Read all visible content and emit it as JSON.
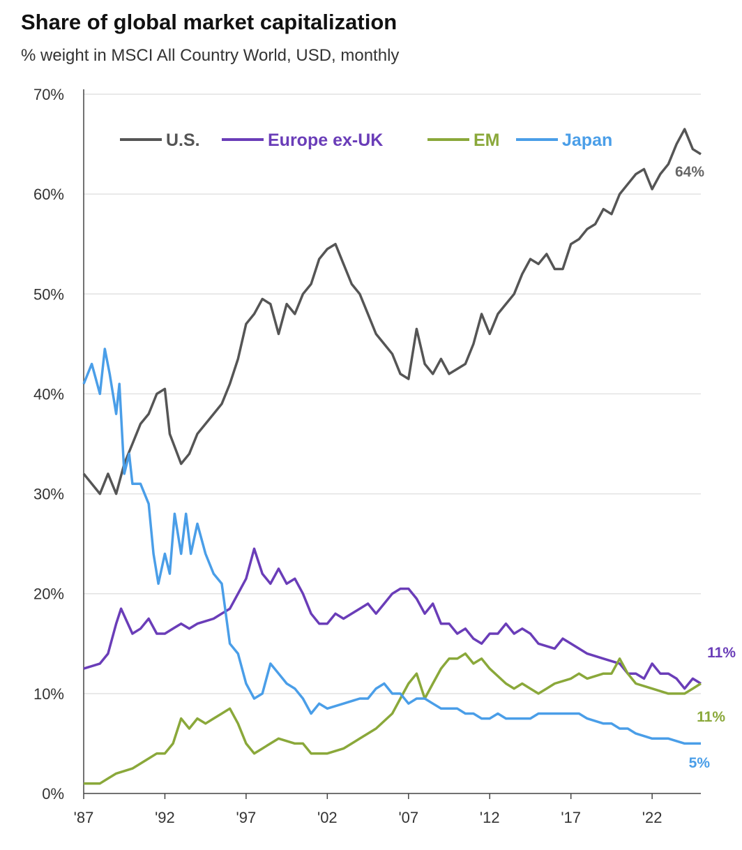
{
  "chart_data": {
    "type": "line",
    "title": "Share of global market capitalization",
    "subtitle": "% weight in MSCI All Country World, USD, monthly",
    "xlabel": "",
    "ylabel": "",
    "xlim": [
      1987,
      2025
    ],
    "ylim": [
      0,
      70
    ],
    "x_ticks": [
      1987,
      1992,
      1997,
      2002,
      2007,
      2012,
      2017,
      2022
    ],
    "x_tick_labels": [
      "'87",
      "'92",
      "'97",
      "'02",
      "'07",
      "'12",
      "'17",
      "'22"
    ],
    "y_ticks": [
      0,
      10,
      20,
      30,
      40,
      50,
      60,
      70
    ],
    "y_tick_labels": [
      "0%",
      "10%",
      "20%",
      "30%",
      "40%",
      "50%",
      "60%",
      "70%"
    ],
    "grid": "horizontal",
    "legend": "top",
    "series": [
      {
        "name": "U.S.",
        "color": "#555555",
        "end_label": "64%",
        "points": [
          [
            1987,
            32
          ],
          [
            1988,
            30
          ],
          [
            1988.5,
            32
          ],
          [
            1989,
            30
          ],
          [
            1989.5,
            33
          ],
          [
            1990,
            35
          ],
          [
            1990.5,
            37
          ],
          [
            1991,
            38
          ],
          [
            1991.5,
            40
          ],
          [
            1992,
            40.5
          ],
          [
            1992.3,
            36
          ],
          [
            1993,
            33
          ],
          [
            1993.5,
            34
          ],
          [
            1994,
            36
          ],
          [
            1995,
            38
          ],
          [
            1995.5,
            39
          ],
          [
            1996,
            41
          ],
          [
            1996.5,
            43.5
          ],
          [
            1997,
            47
          ],
          [
            1997.5,
            48
          ],
          [
            1998,
            49.5
          ],
          [
            1998.5,
            49
          ],
          [
            1999,
            46
          ],
          [
            1999.5,
            49
          ],
          [
            2000,
            48
          ],
          [
            2000.5,
            50
          ],
          [
            2001,
            51
          ],
          [
            2001.5,
            53.5
          ],
          [
            2002,
            54.5
          ],
          [
            2002.5,
            55
          ],
          [
            2003,
            53
          ],
          [
            2003.5,
            51
          ],
          [
            2004,
            50
          ],
          [
            2004.5,
            48
          ],
          [
            2005,
            46
          ],
          [
            2005.5,
            45
          ],
          [
            2006,
            44
          ],
          [
            2006.5,
            42
          ],
          [
            2007,
            41.5
          ],
          [
            2007.5,
            46.5
          ],
          [
            2008,
            43
          ],
          [
            2008.5,
            42
          ],
          [
            2009,
            43.5
          ],
          [
            2009.5,
            42
          ],
          [
            2010,
            42.5
          ],
          [
            2010.5,
            43
          ],
          [
            2011,
            45
          ],
          [
            2011.5,
            48
          ],
          [
            2012,
            46
          ],
          [
            2012.5,
            48
          ],
          [
            2013,
            49
          ],
          [
            2013.5,
            50
          ],
          [
            2014,
            52
          ],
          [
            2014.5,
            53.5
          ],
          [
            2015,
            53
          ],
          [
            2015.5,
            54
          ],
          [
            2016,
            52.5
          ],
          [
            2016.5,
            52.5
          ],
          [
            2017,
            55
          ],
          [
            2017.5,
            55.5
          ],
          [
            2018,
            56.5
          ],
          [
            2018.5,
            57
          ],
          [
            2019,
            58.5
          ],
          [
            2019.5,
            58
          ],
          [
            2020,
            60
          ],
          [
            2020.5,
            61
          ],
          [
            2021,
            62
          ],
          [
            2021.5,
            62.5
          ],
          [
            2022,
            60.5
          ],
          [
            2022.5,
            62
          ],
          [
            2023,
            63
          ],
          [
            2023.5,
            65
          ],
          [
            2024,
            66.5
          ],
          [
            2024.5,
            64.5
          ],
          [
            2025,
            64
          ]
        ]
      },
      {
        "name": "Europe ex-UK",
        "color": "#6a3db8",
        "end_label": "11%",
        "points": [
          [
            1987,
            12.5
          ],
          [
            1988,
            13
          ],
          [
            1988.5,
            14
          ],
          [
            1989,
            17
          ],
          [
            1989.3,
            18.5
          ],
          [
            1990,
            16
          ],
          [
            1990.5,
            16.5
          ],
          [
            1991,
            17.5
          ],
          [
            1991.5,
            16
          ],
          [
            1992,
            16
          ],
          [
            1992.5,
            16.5
          ],
          [
            1993,
            17
          ],
          [
            1993.5,
            16.5
          ],
          [
            1994,
            17
          ],
          [
            1995,
            17.5
          ],
          [
            1995.5,
            18
          ],
          [
            1996,
            18.5
          ],
          [
            1996.5,
            20
          ],
          [
            1997,
            21.5
          ],
          [
            1997.5,
            24.5
          ],
          [
            1998,
            22
          ],
          [
            1998.5,
            21
          ],
          [
            1999,
            22.5
          ],
          [
            1999.5,
            21
          ],
          [
            2000,
            21.5
          ],
          [
            2000.5,
            20
          ],
          [
            2001,
            18
          ],
          [
            2001.5,
            17
          ],
          [
            2002,
            17
          ],
          [
            2002.5,
            18
          ],
          [
            2003,
            17.5
          ],
          [
            2004,
            18.5
          ],
          [
            2004.5,
            19
          ],
          [
            2005,
            18
          ],
          [
            2005.5,
            19
          ],
          [
            2006,
            20
          ],
          [
            2006.5,
            20.5
          ],
          [
            2007,
            20.5
          ],
          [
            2007.5,
            19.5
          ],
          [
            2008,
            18
          ],
          [
            2008.5,
            19
          ],
          [
            2009,
            17
          ],
          [
            2009.5,
            17
          ],
          [
            2010,
            16
          ],
          [
            2010.5,
            16.5
          ],
          [
            2011,
            15.5
          ],
          [
            2011.5,
            15
          ],
          [
            2012,
            16
          ],
          [
            2012.5,
            16
          ],
          [
            2013,
            17
          ],
          [
            2013.5,
            16
          ],
          [
            2014,
            16.5
          ],
          [
            2014.5,
            16
          ],
          [
            2015,
            15
          ],
          [
            2016,
            14.5
          ],
          [
            2016.5,
            15.5
          ],
          [
            2017,
            15
          ],
          [
            2017.5,
            14.5
          ],
          [
            2018,
            14
          ],
          [
            2019,
            13.5
          ],
          [
            2020,
            13
          ],
          [
            2020.5,
            12
          ],
          [
            2021,
            12
          ],
          [
            2021.5,
            11.5
          ],
          [
            2022,
            13
          ],
          [
            2022.5,
            12
          ],
          [
            2023,
            12
          ],
          [
            2023.5,
            11.5
          ],
          [
            2024,
            10.5
          ],
          [
            2024.5,
            11.5
          ],
          [
            2025,
            11
          ]
        ]
      },
      {
        "name": "EM",
        "color": "#8aa83a",
        "end_label": "11%",
        "points": [
          [
            1987,
            1
          ],
          [
            1988,
            1
          ],
          [
            1988.5,
            1.5
          ],
          [
            1989,
            2
          ],
          [
            1990,
            2.5
          ],
          [
            1991,
            3.5
          ],
          [
            1991.5,
            4
          ],
          [
            1992,
            4
          ],
          [
            1992.5,
            5
          ],
          [
            1993,
            7.5
          ],
          [
            1993.5,
            6.5
          ],
          [
            1994,
            7.5
          ],
          [
            1994.5,
            7
          ],
          [
            1995,
            7.5
          ],
          [
            1995.5,
            8
          ],
          [
            1996,
            8.5
          ],
          [
            1996.5,
            7
          ],
          [
            1997,
            5
          ],
          [
            1997.5,
            4
          ],
          [
            1998,
            4.5
          ],
          [
            1998.5,
            5
          ],
          [
            1999,
            5.5
          ],
          [
            2000,
            5
          ],
          [
            2000.5,
            5
          ],
          [
            2001,
            4
          ],
          [
            2002,
            4
          ],
          [
            2003,
            4.5
          ],
          [
            2004,
            5.5
          ],
          [
            2005,
            6.5
          ],
          [
            2006,
            8
          ],
          [
            2006.5,
            9.5
          ],
          [
            2007,
            11
          ],
          [
            2007.5,
            12
          ],
          [
            2008,
            9.5
          ],
          [
            2008.5,
            11
          ],
          [
            2009,
            12.5
          ],
          [
            2009.5,
            13.5
          ],
          [
            2010,
            13.5
          ],
          [
            2010.5,
            14
          ],
          [
            2011,
            13
          ],
          [
            2011.5,
            13.5
          ],
          [
            2012,
            12.5
          ],
          [
            2013,
            11
          ],
          [
            2013.5,
            10.5
          ],
          [
            2014,
            11
          ],
          [
            2015,
            10
          ],
          [
            2015.5,
            10.5
          ],
          [
            2016,
            11
          ],
          [
            2017,
            11.5
          ],
          [
            2017.5,
            12
          ],
          [
            2018,
            11.5
          ],
          [
            2019,
            12
          ],
          [
            2019.5,
            12
          ],
          [
            2020,
            13.5
          ],
          [
            2020.5,
            12
          ],
          [
            2021,
            11
          ],
          [
            2022,
            10.5
          ],
          [
            2023,
            10
          ],
          [
            2023.5,
            10
          ],
          [
            2024,
            10
          ],
          [
            2024.5,
            10.5
          ],
          [
            2025,
            11
          ]
        ]
      },
      {
        "name": "Japan",
        "color": "#4a9ee8",
        "end_label": "5%",
        "points": [
          [
            1987,
            41
          ],
          [
            1987.5,
            43
          ],
          [
            1988,
            40
          ],
          [
            1988.3,
            44.5
          ],
          [
            1988.6,
            42
          ],
          [
            1989,
            38
          ],
          [
            1989.2,
            41
          ],
          [
            1989.5,
            32
          ],
          [
            1989.8,
            34
          ],
          [
            1990,
            31
          ],
          [
            1990.5,
            31
          ],
          [
            1991,
            29
          ],
          [
            1991.3,
            24
          ],
          [
            1991.6,
            21
          ],
          [
            1992,
            24
          ],
          [
            1992.3,
            22
          ],
          [
            1992.6,
            28
          ],
          [
            1993,
            24
          ],
          [
            1993.3,
            28
          ],
          [
            1993.6,
            24
          ],
          [
            1994,
            27
          ],
          [
            1994.5,
            24
          ],
          [
            1995,
            22
          ],
          [
            1995.5,
            21
          ],
          [
            1996,
            15
          ],
          [
            1996.5,
            14
          ],
          [
            1997,
            11
          ],
          [
            1997.5,
            9.5
          ],
          [
            1998,
            10
          ],
          [
            1998.5,
            13
          ],
          [
            1999,
            12
          ],
          [
            1999.5,
            11
          ],
          [
            2000,
            10.5
          ],
          [
            2000.5,
            9.5
          ],
          [
            2001,
            8
          ],
          [
            2001.5,
            9
          ],
          [
            2002,
            8.5
          ],
          [
            2003,
            9
          ],
          [
            2004,
            9.5
          ],
          [
            2004.5,
            9.5
          ],
          [
            2005,
            10.5
          ],
          [
            2005.5,
            11
          ],
          [
            2006,
            10
          ],
          [
            2006.5,
            10
          ],
          [
            2007,
            9
          ],
          [
            2007.5,
            9.5
          ],
          [
            2008,
            9.5
          ],
          [
            2008.5,
            9
          ],
          [
            2009,
            8.5
          ],
          [
            2010,
            8.5
          ],
          [
            2010.5,
            8
          ],
          [
            2011,
            8
          ],
          [
            2011.5,
            7.5
          ],
          [
            2012,
            7.5
          ],
          [
            2012.5,
            8
          ],
          [
            2013,
            7.5
          ],
          [
            2014,
            7.5
          ],
          [
            2014.5,
            7.5
          ],
          [
            2015,
            8
          ],
          [
            2016,
            8
          ],
          [
            2017,
            8
          ],
          [
            2017.5,
            8
          ],
          [
            2018,
            7.5
          ],
          [
            2019,
            7
          ],
          [
            2019.5,
            7
          ],
          [
            2020,
            6.5
          ],
          [
            2020.5,
            6.5
          ],
          [
            2021,
            6
          ],
          [
            2022,
            5.5
          ],
          [
            2023,
            5.5
          ],
          [
            2024,
            5
          ],
          [
            2025,
            5
          ]
        ]
      }
    ]
  }
}
